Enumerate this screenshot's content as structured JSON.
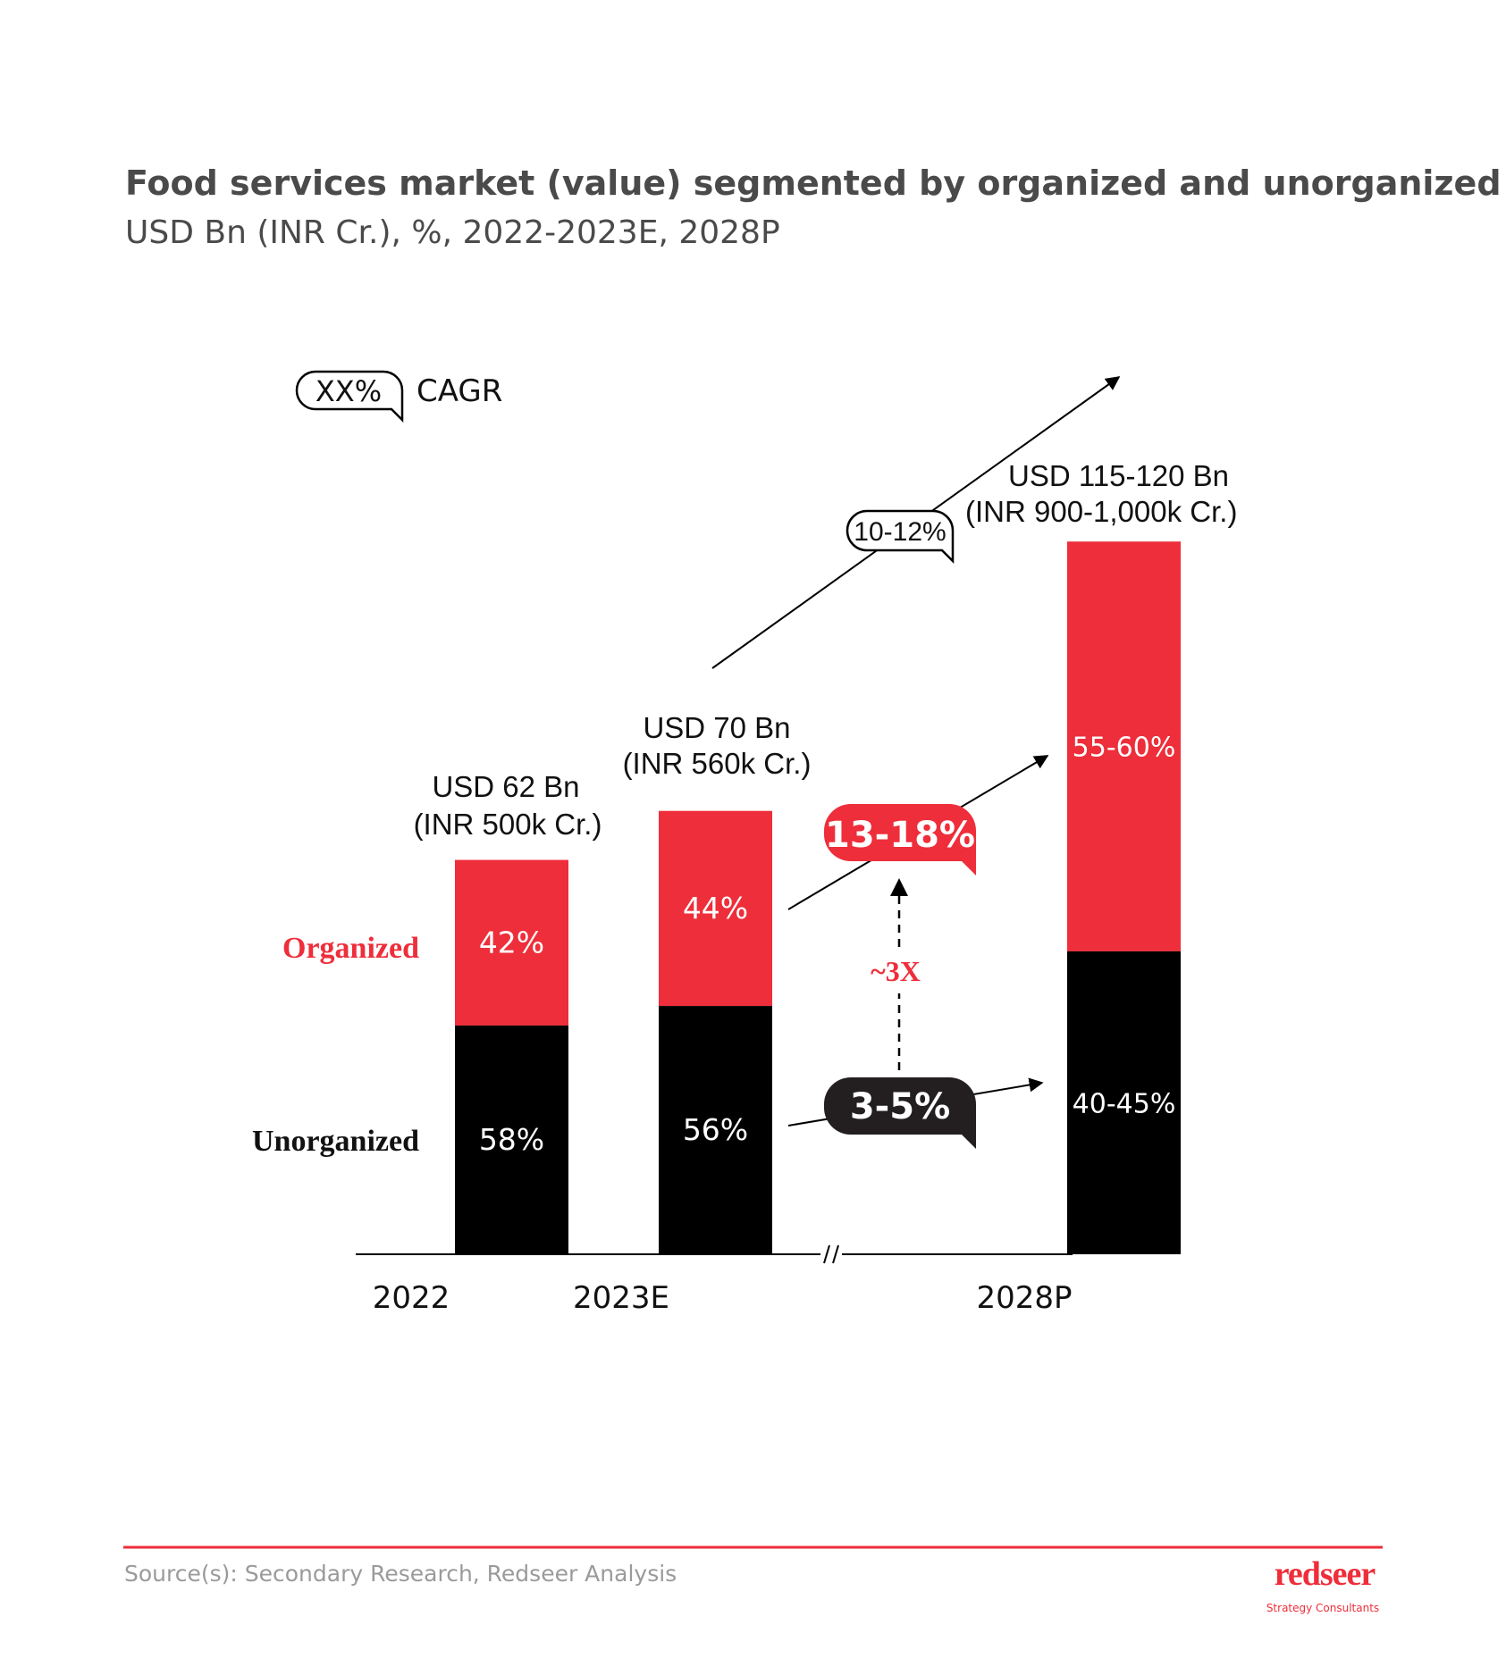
{
  "title": "Food services market (value) segmented by organized and unorganized",
  "subtitle": "USD Bn (INR Cr.), %, 2022-2023E, 2028P",
  "legend": {
    "bubble_text": "XX%",
    "label": "CAGR"
  },
  "colors": {
    "organized": "#EE2E3A",
    "unorganized": "#000000",
    "text": "#222222",
    "title": "#4a4a4a",
    "source": "#9a9a9a"
  },
  "chart_data": {
    "type": "bar",
    "stacked": true,
    "categories": [
      "2022",
      "2023E",
      "2028P"
    ],
    "axis_break_before": "2028P",
    "series": [
      {
        "name": "Unorganized",
        "color": "#000000",
        "values": [
          [
            58
          ],
          [
            56
          ],
          [
            40,
            45
          ]
        ],
        "labels": [
          "58%",
          "56%",
          "40-45%"
        ]
      },
      {
        "name": "Organized",
        "color": "#EE2E3A",
        "values": [
          [
            42
          ],
          [
            44
          ],
          [
            55,
            60
          ]
        ],
        "labels": [
          "42%",
          "44%",
          "55-60%"
        ]
      }
    ],
    "totals_usd_bn": [
      [
        62
      ],
      [
        70
      ],
      [
        115,
        120
      ]
    ],
    "total_labels": [
      {
        "usd": "USD 62 Bn",
        "inr": "(INR 500k Cr.)"
      },
      {
        "usd": "USD 70 Bn",
        "inr": "(INR 560k Cr.)"
      },
      {
        "usd": "USD 115-120 Bn",
        "inr": "(INR 900-1,000k Cr.)"
      }
    ],
    "annotations": {
      "total_cagr": "10-12%",
      "organized_cagr": "13-18%",
      "unorganized_cagr": "3-5%",
      "growth_multiple": "~3X"
    }
  },
  "footer": {
    "source": "Source(s): Secondary Research, Redseer Analysis",
    "logo": "redseer",
    "logo_tagline": "Strategy Consultants"
  }
}
